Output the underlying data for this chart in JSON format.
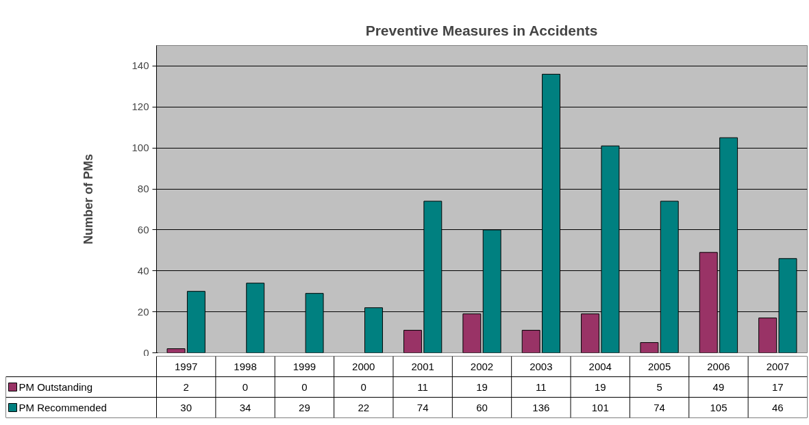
{
  "chart_data": {
    "type": "bar",
    "title": "Preventive Measures in Accidents",
    "ylabel": "Number of PMs",
    "categories": [
      "1997",
      "1998",
      "1999",
      "2000",
      "2001",
      "2002",
      "2003",
      "2004",
      "2005",
      "2006",
      "2007"
    ],
    "series": [
      {
        "name": "PM Outstanding",
        "color": "#993366",
        "values": [
          2,
          0,
          0,
          0,
          11,
          19,
          11,
          19,
          5,
          49,
          17
        ]
      },
      {
        "name": "PM Recommended",
        "color": "#008080",
        "values": [
          30,
          34,
          29,
          22,
          74,
          60,
          136,
          101,
          74,
          105,
          46
        ]
      }
    ],
    "ylim": [
      0,
      150
    ],
    "yticks": [
      0,
      20,
      40,
      60,
      80,
      100,
      120,
      140
    ],
    "grid": "y",
    "legend": "bottom",
    "data_labels": true
  }
}
